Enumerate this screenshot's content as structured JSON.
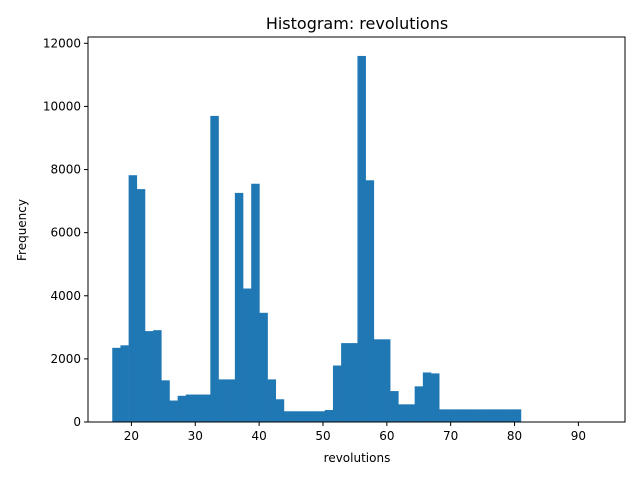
{
  "chart_data": {
    "type": "bar",
    "title": "Histogram: revolutions",
    "xlabel": "revolutions",
    "ylabel": "Frequency",
    "bin_start": 17,
    "bin_width": 1.28,
    "values": [
      2350,
      2430,
      7820,
      7380,
      2880,
      2910,
      1320,
      680,
      830,
      870,
      870,
      870,
      9700,
      1350,
      1350,
      7260,
      4230,
      7550,
      3460,
      1350,
      720,
      340,
      340,
      340,
      340,
      340,
      380,
      1790,
      2500,
      2500,
      11600,
      7660,
      2620,
      2620,
      980,
      560,
      560,
      1130,
      1570,
      1540,
      400,
      400,
      400,
      400,
      400,
      400,
      400,
      400,
      400,
      400
    ],
    "xlim": [
      13.2,
      97.3
    ],
    "ylim": [
      0,
      12200
    ],
    "xticks": [
      20,
      30,
      40,
      50,
      60,
      70,
      80,
      90
    ],
    "yticks": [
      0,
      2000,
      4000,
      6000,
      8000,
      10000,
      12000
    ],
    "bar_color": "#1f77b4",
    "grid": false,
    "legend": "none"
  }
}
